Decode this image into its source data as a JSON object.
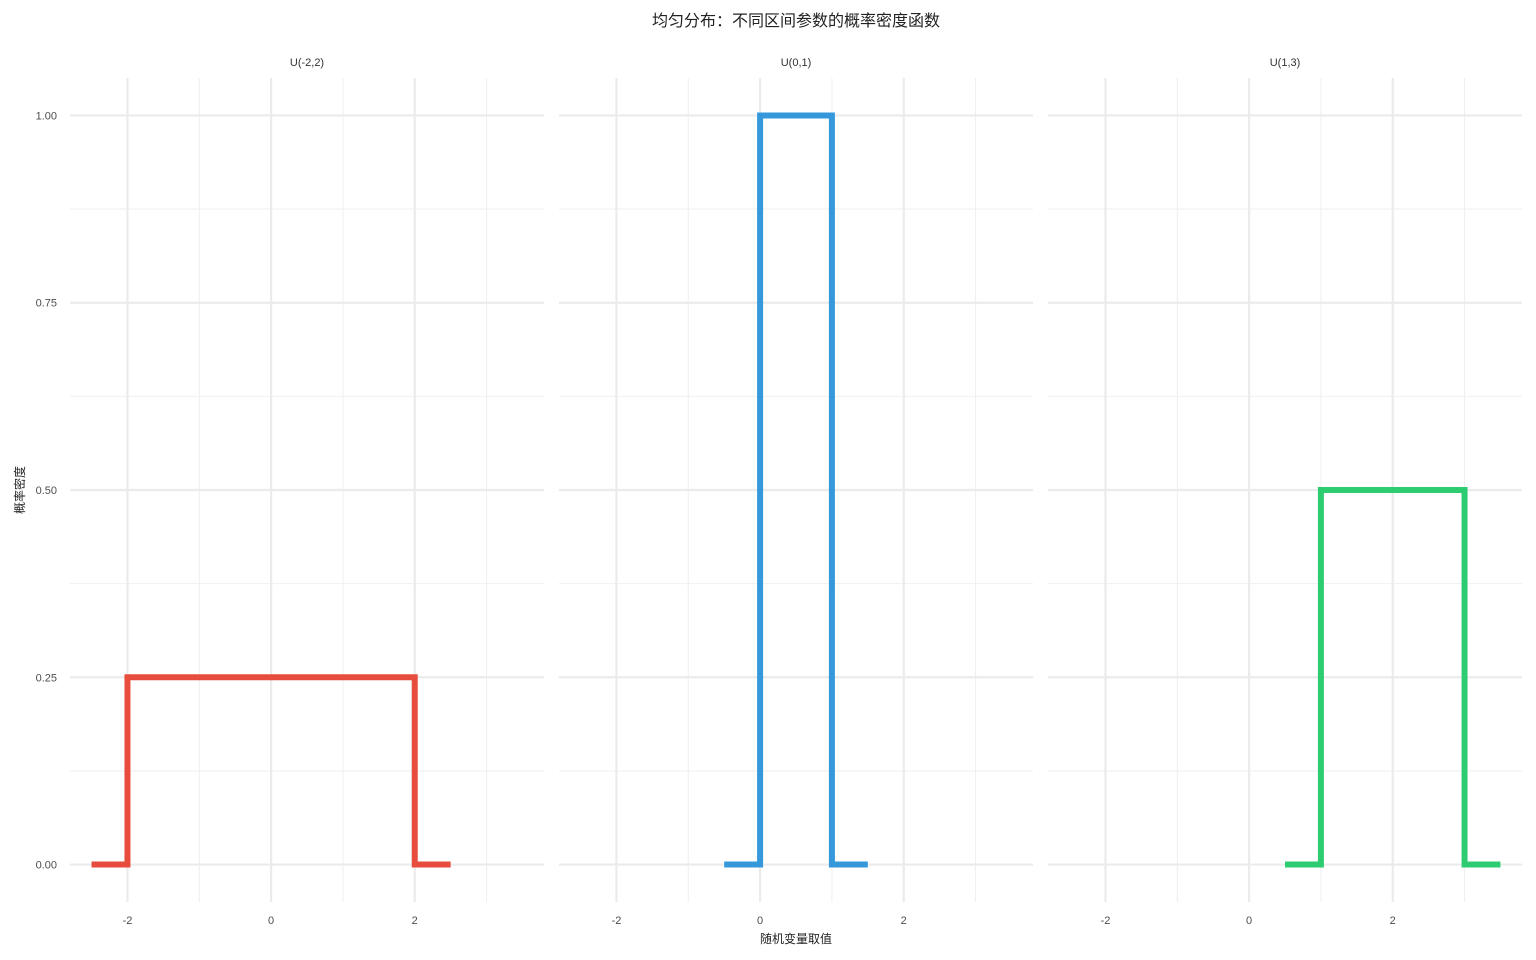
{
  "chart_data": {
    "type": "line",
    "title": "均匀分布：不同区间参数的概率密度函数",
    "xlabel": "随机变量取值",
    "ylabel": "概率密度",
    "xlim": [
      -2.8,
      3.8
    ],
    "ylim": [
      -0.05,
      1.05
    ],
    "x_major_ticks": [
      -2,
      0,
      2
    ],
    "x_tick_labels": [
      "-2",
      "0",
      "2"
    ],
    "x_minor_ticks": [
      -1,
      1,
      3
    ],
    "y_major_ticks": [
      0,
      0.25,
      0.5,
      0.75,
      1.0
    ],
    "y_tick_labels": [
      "0.00",
      "0.25",
      "0.50",
      "0.75",
      "1.00"
    ],
    "y_minor_ticks": [
      0.125,
      0.375,
      0.625,
      0.875
    ],
    "grid": true,
    "legend": "none",
    "facets": [
      {
        "label": "U(-2,2)",
        "color": "#e74c3c",
        "x": [
          -2.5,
          -2.0,
          -2.0,
          2.0,
          2.0,
          2.5
        ],
        "y": [
          0,
          0,
          0.25,
          0.25,
          0,
          0
        ]
      },
      {
        "label": "U(0,1)",
        "color": "#3498db",
        "x": [
          -0.5,
          0.0,
          0.0,
          1.0,
          1.0,
          1.5
        ],
        "y": [
          0,
          0,
          1.0,
          1.0,
          0,
          0
        ]
      },
      {
        "label": "U(1,3)",
        "color": "#2ecc71",
        "x": [
          0.5,
          1.0,
          1.0,
          3.0,
          3.0,
          3.5
        ],
        "y": [
          0,
          0,
          0.5,
          0.5,
          0,
          0
        ]
      }
    ]
  }
}
